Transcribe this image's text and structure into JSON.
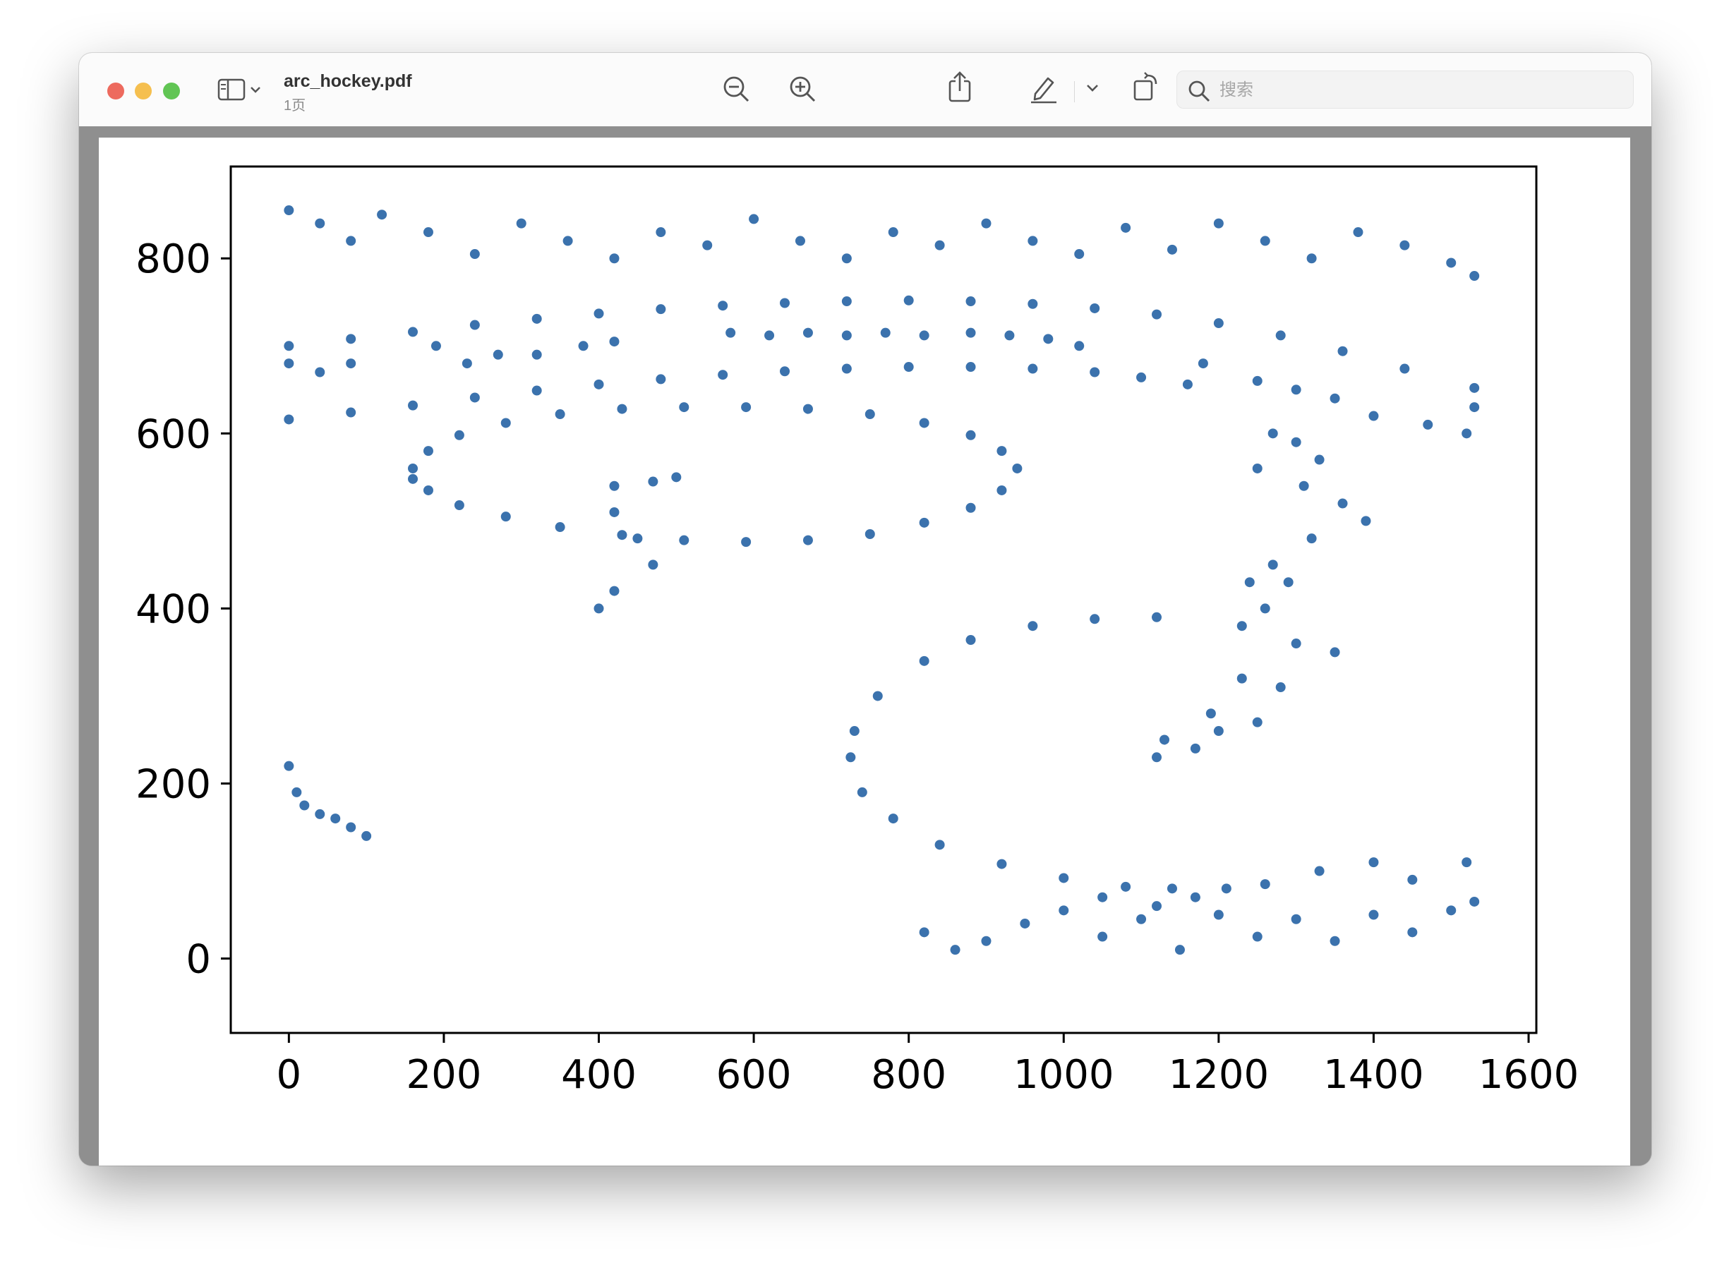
{
  "window": {
    "title": "arc_hockey.pdf",
    "page_count": "1页"
  },
  "toolbar": {
    "icons": [
      "sidebar-icon",
      "chevron-down-icon",
      "zoom-out-icon",
      "zoom-in-icon",
      "share-icon",
      "pencil-markup-icon",
      "chevron-down-icon",
      "rotate-icon",
      "annotate-icon",
      "search-icon"
    ],
    "search_placeholder": "搜索"
  },
  "colors": {
    "accent": "#3b72ad",
    "red_light": "#ed6a5e",
    "yellow_light": "#f5bf4f",
    "green_light": "#61c554"
  },
  "chart_data": {
    "type": "scatter",
    "title": "",
    "xlabel": "",
    "ylabel": "",
    "xlim": [
      -75,
      1610
    ],
    "ylim": [
      -85,
      905
    ],
    "xticks": [
      0,
      200,
      400,
      600,
      800,
      1000,
      1200,
      1400,
      1600
    ],
    "yticks": [
      0,
      200,
      400,
      600,
      800
    ],
    "grid": false,
    "color": "#3b72ad",
    "series": [
      {
        "points": [
          [
            0,
            700
          ],
          [
            80,
            708
          ],
          [
            160,
            716
          ],
          [
            240,
            724
          ],
          [
            320,
            731
          ],
          [
            400,
            737
          ],
          [
            480,
            742
          ],
          [
            560,
            746
          ],
          [
            640,
            749
          ],
          [
            720,
            751
          ],
          [
            800,
            752
          ],
          [
            880,
            751
          ],
          [
            960,
            748
          ],
          [
            1040,
            743
          ],
          [
            1120,
            736
          ],
          [
            1200,
            726
          ],
          [
            1280,
            712
          ],
          [
            1360,
            694
          ],
          [
            1440,
            674
          ],
          [
            1530,
            652
          ],
          [
            0,
            616
          ],
          [
            80,
            624
          ],
          [
            160,
            632
          ],
          [
            240,
            641
          ],
          [
            320,
            649
          ],
          [
            400,
            656
          ],
          [
            480,
            662
          ],
          [
            560,
            667
          ],
          [
            640,
            671
          ],
          [
            720,
            674
          ],
          [
            800,
            676
          ],
          [
            880,
            676
          ],
          [
            960,
            674
          ],
          [
            1040,
            670
          ],
          [
            1100,
            664
          ],
          [
            1160,
            656
          ],
          [
            160,
            560
          ],
          [
            180,
            580
          ],
          [
            220,
            598
          ],
          [
            280,
            612
          ],
          [
            350,
            622
          ],
          [
            430,
            628
          ],
          [
            510,
            630
          ],
          [
            590,
            630
          ],
          [
            670,
            628
          ],
          [
            750,
            622
          ],
          [
            820,
            612
          ],
          [
            880,
            598
          ],
          [
            920,
            580
          ],
          [
            940,
            560
          ],
          [
            920,
            535
          ],
          [
            880,
            515
          ],
          [
            820,
            498
          ],
          [
            750,
            485
          ],
          [
            670,
            478
          ],
          [
            590,
            476
          ],
          [
            510,
            478
          ],
          [
            430,
            484
          ],
          [
            350,
            493
          ],
          [
            280,
            505
          ],
          [
            220,
            518
          ],
          [
            180,
            535
          ],
          [
            160,
            548
          ],
          [
            1120,
            390
          ],
          [
            1040,
            388
          ],
          [
            960,
            380
          ],
          [
            880,
            364
          ],
          [
            820,
            340
          ],
          [
            760,
            300
          ],
          [
            730,
            260
          ],
          [
            725,
            230
          ],
          [
            740,
            190
          ],
          [
            780,
            160
          ],
          [
            840,
            130
          ],
          [
            920,
            108
          ],
          [
            1000,
            92
          ],
          [
            1080,
            82
          ],
          [
            1140,
            80
          ],
          [
            0,
            855
          ],
          [
            40,
            840
          ],
          [
            80,
            820
          ],
          [
            120,
            850
          ],
          [
            180,
            830
          ],
          [
            240,
            805
          ],
          [
            300,
            840
          ],
          [
            360,
            820
          ],
          [
            420,
            800
          ],
          [
            480,
            830
          ],
          [
            540,
            815
          ],
          [
            600,
            845
          ],
          [
            660,
            820
          ],
          [
            720,
            800
          ],
          [
            780,
            830
          ],
          [
            840,
            815
          ],
          [
            900,
            840
          ],
          [
            960,
            820
          ],
          [
            1020,
            805
          ],
          [
            1080,
            835
          ],
          [
            1140,
            810
          ],
          [
            1200,
            840
          ],
          [
            1260,
            820
          ],
          [
            1320,
            800
          ],
          [
            1380,
            830
          ],
          [
            1440,
            815
          ],
          [
            1500,
            795
          ],
          [
            1530,
            780
          ],
          [
            0,
            680
          ],
          [
            40,
            670
          ],
          [
            80,
            680
          ],
          [
            190,
            700
          ],
          [
            230,
            680
          ],
          [
            270,
            690
          ],
          [
            320,
            690
          ],
          [
            380,
            700
          ],
          [
            420,
            705
          ],
          [
            570,
            715
          ],
          [
            620,
            712
          ],
          [
            670,
            715
          ],
          [
            720,
            712
          ],
          [
            770,
            715
          ],
          [
            820,
            712
          ],
          [
            880,
            715
          ],
          [
            930,
            712
          ],
          [
            980,
            708
          ],
          [
            1020,
            700
          ],
          [
            1180,
            680
          ],
          [
            1250,
            660
          ],
          [
            1300,
            650
          ],
          [
            1350,
            640
          ],
          [
            1400,
            620
          ],
          [
            1470,
            610
          ],
          [
            1520,
            600
          ],
          [
            1530,
            630
          ],
          [
            420,
            540
          ],
          [
            470,
            545
          ],
          [
            500,
            550
          ],
          [
            420,
            510
          ],
          [
            450,
            480
          ],
          [
            470,
            450
          ],
          [
            420,
            420
          ],
          [
            400,
            400
          ],
          [
            1270,
            600
          ],
          [
            1300,
            590
          ],
          [
            1330,
            570
          ],
          [
            1250,
            560
          ],
          [
            1310,
            540
          ],
          [
            1360,
            520
          ],
          [
            1390,
            500
          ],
          [
            1320,
            480
          ],
          [
            1270,
            450
          ],
          [
            1240,
            430
          ],
          [
            1290,
            430
          ],
          [
            1260,
            400
          ],
          [
            1230,
            380
          ],
          [
            1300,
            360
          ],
          [
            1350,
            350
          ],
          [
            1230,
            320
          ],
          [
            1280,
            310
          ],
          [
            1130,
            250
          ],
          [
            1200,
            260
          ],
          [
            1250,
            270
          ],
          [
            1190,
            280
          ],
          [
            1170,
            240
          ],
          [
            1120,
            230
          ],
          [
            820,
            30
          ],
          [
            860,
            10
          ],
          [
            900,
            20
          ],
          [
            950,
            40
          ],
          [
            1000,
            55
          ],
          [
            1050,
            25
          ],
          [
            1100,
            45
          ],
          [
            1150,
            10
          ],
          [
            1200,
            50
          ],
          [
            1250,
            25
          ],
          [
            1300,
            45
          ],
          [
            1350,
            20
          ],
          [
            1400,
            50
          ],
          [
            1450,
            30
          ],
          [
            1500,
            55
          ],
          [
            1530,
            65
          ],
          [
            1520,
            110
          ],
          [
            1450,
            90
          ],
          [
            1400,
            110
          ],
          [
            1330,
            100
          ],
          [
            1260,
            85
          ],
          [
            1210,
            80
          ],
          [
            1170,
            70
          ],
          [
            1120,
            60
          ],
          [
            1050,
            70
          ],
          [
            0,
            220
          ],
          [
            10,
            190
          ],
          [
            20,
            175
          ],
          [
            40,
            165
          ],
          [
            60,
            160
          ],
          [
            80,
            150
          ],
          [
            100,
            140
          ]
        ]
      }
    ]
  }
}
